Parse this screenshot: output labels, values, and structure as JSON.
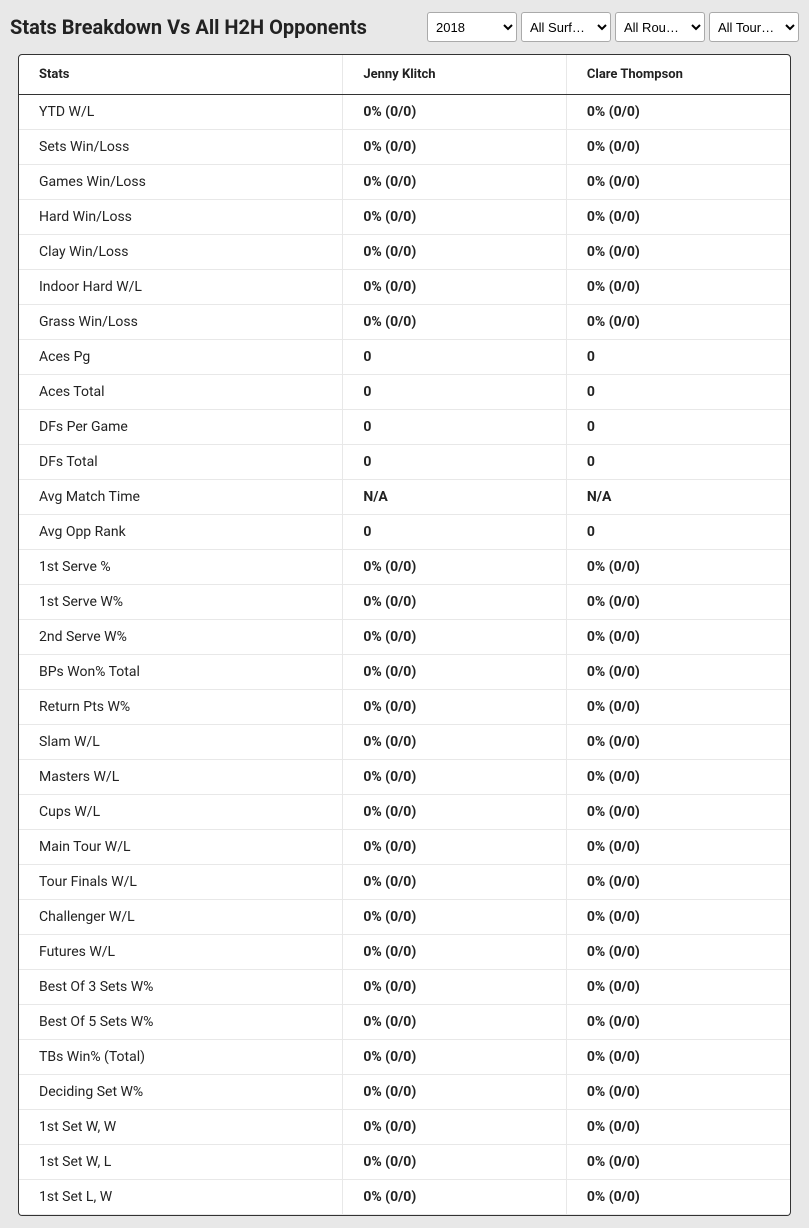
{
  "header": {
    "title": "Stats Breakdown Vs All H2H Opponents"
  },
  "filters": {
    "year": {
      "selected": "2018",
      "options": [
        "2018"
      ]
    },
    "surface": {
      "selected": "All Surf…",
      "options": [
        "All Surf…"
      ]
    },
    "round": {
      "selected": "All Rou…",
      "options": [
        "All Rou…"
      ]
    },
    "tour": {
      "selected": "All Tour…",
      "options": [
        "All Tour…"
      ]
    }
  },
  "table": {
    "columns": [
      "Stats",
      "Jenny Klitch",
      "Clare Thompson"
    ],
    "rows": [
      {
        "label": "YTD W/L",
        "p1": "0% (0/0)",
        "p2": "0% (0/0)"
      },
      {
        "label": "Sets Win/Loss",
        "p1": "0% (0/0)",
        "p2": "0% (0/0)"
      },
      {
        "label": "Games Win/Loss",
        "p1": "0% (0/0)",
        "p2": "0% (0/0)"
      },
      {
        "label": "Hard Win/Loss",
        "p1": "0% (0/0)",
        "p2": "0% (0/0)"
      },
      {
        "label": "Clay Win/Loss",
        "p1": "0% (0/0)",
        "p2": "0% (0/0)"
      },
      {
        "label": "Indoor Hard W/L",
        "p1": "0% (0/0)",
        "p2": "0% (0/0)"
      },
      {
        "label": "Grass Win/Loss",
        "p1": "0% (0/0)",
        "p2": "0% (0/0)"
      },
      {
        "label": "Aces Pg",
        "p1": "0",
        "p2": "0"
      },
      {
        "label": "Aces Total",
        "p1": "0",
        "p2": "0"
      },
      {
        "label": "DFs Per Game",
        "p1": "0",
        "p2": "0"
      },
      {
        "label": "DFs Total",
        "p1": "0",
        "p2": "0"
      },
      {
        "label": "Avg Match Time",
        "p1": "N/A",
        "p2": "N/A"
      },
      {
        "label": "Avg Opp Rank",
        "p1": "0",
        "p2": "0"
      },
      {
        "label": "1st Serve %",
        "p1": "0% (0/0)",
        "p2": "0% (0/0)"
      },
      {
        "label": "1st Serve W%",
        "p1": "0% (0/0)",
        "p2": "0% (0/0)"
      },
      {
        "label": "2nd Serve W%",
        "p1": "0% (0/0)",
        "p2": "0% (0/0)"
      },
      {
        "label": "BPs Won% Total",
        "p1": "0% (0/0)",
        "p2": "0% (0/0)"
      },
      {
        "label": "Return Pts W%",
        "p1": "0% (0/0)",
        "p2": "0% (0/0)"
      },
      {
        "label": "Slam W/L",
        "p1": "0% (0/0)",
        "p2": "0% (0/0)"
      },
      {
        "label": "Masters W/L",
        "p1": "0% (0/0)",
        "p2": "0% (0/0)"
      },
      {
        "label": "Cups W/L",
        "p1": "0% (0/0)",
        "p2": "0% (0/0)"
      },
      {
        "label": "Main Tour W/L",
        "p1": "0% (0/0)",
        "p2": "0% (0/0)"
      },
      {
        "label": "Tour Finals W/L",
        "p1": "0% (0/0)",
        "p2": "0% (0/0)"
      },
      {
        "label": "Challenger W/L",
        "p1": "0% (0/0)",
        "p2": "0% (0/0)"
      },
      {
        "label": "Futures W/L",
        "p1": "0% (0/0)",
        "p2": "0% (0/0)"
      },
      {
        "label": "Best Of 3 Sets W%",
        "p1": "0% (0/0)",
        "p2": "0% (0/0)"
      },
      {
        "label": "Best Of 5 Sets W%",
        "p1": "0% (0/0)",
        "p2": "0% (0/0)"
      },
      {
        "label": "TBs Win% (Total)",
        "p1": "0% (0/0)",
        "p2": "0% (0/0)"
      },
      {
        "label": "Deciding Set W%",
        "p1": "0% (0/0)",
        "p2": "0% (0/0)"
      },
      {
        "label": "1st Set W, W",
        "p1": "0% (0/0)",
        "p2": "0% (0/0)"
      },
      {
        "label": "1st Set W, L",
        "p1": "0% (0/0)",
        "p2": "0% (0/0)"
      },
      {
        "label": "1st Set L, W",
        "p1": "0% (0/0)",
        "p2": "0% (0/0)"
      }
    ]
  },
  "styling": {
    "background_color": "#e8e8e8",
    "table_background": "#ffffff",
    "table_border_color": "#333333",
    "row_separator_color": "#e8e8e8",
    "text_color": "#222222",
    "title_fontsize": 20,
    "header_fontsize": 13,
    "cell_fontsize": 14
  }
}
